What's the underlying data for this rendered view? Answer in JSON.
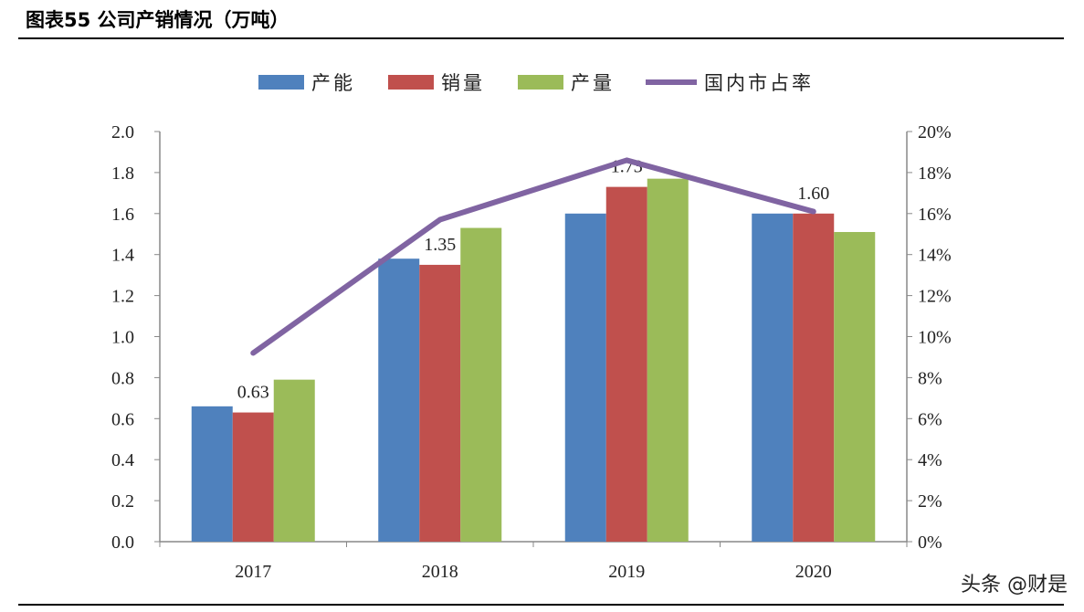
{
  "title": "图表55  公司产销情况（万吨）",
  "watermark": "头条 @财是",
  "chart_data": {
    "type": "bar+line",
    "title": "",
    "categories": [
      "2017",
      "2018",
      "2019",
      "2020"
    ],
    "series": [
      {
        "name": "产能",
        "type": "bar",
        "axis": "left",
        "color": "#4F81BD",
        "values": [
          0.66,
          1.38,
          1.6,
          1.6
        ]
      },
      {
        "name": "销量",
        "type": "bar",
        "axis": "left",
        "color": "#C0504D",
        "values": [
          0.63,
          1.35,
          1.73,
          1.6
        ],
        "data_labels": [
          "0.63",
          "1.35",
          "1.73",
          "1.60"
        ]
      },
      {
        "name": "产量",
        "type": "bar",
        "axis": "left",
        "color": "#9BBB59",
        "values": [
          0.79,
          1.53,
          1.77,
          1.51
        ]
      },
      {
        "name": "国内市占率",
        "type": "line",
        "axis": "right",
        "color": "#8064A2",
        "values": [
          9.2,
          15.7,
          18.6,
          16.1
        ]
      }
    ],
    "y_left": {
      "range": [
        0,
        2.0
      ],
      "ticks": [
        "0.0",
        "0.2",
        "0.4",
        "0.6",
        "0.8",
        "1.0",
        "1.2",
        "1.4",
        "1.6",
        "1.8",
        "2.0"
      ]
    },
    "y_right": {
      "range": [
        0,
        20
      ],
      "unit": "%",
      "ticks": [
        "0%",
        "2%",
        "4%",
        "6%",
        "8%",
        "10%",
        "12%",
        "14%",
        "16%",
        "18%",
        "20%"
      ]
    },
    "grid": false,
    "legend": "top"
  }
}
